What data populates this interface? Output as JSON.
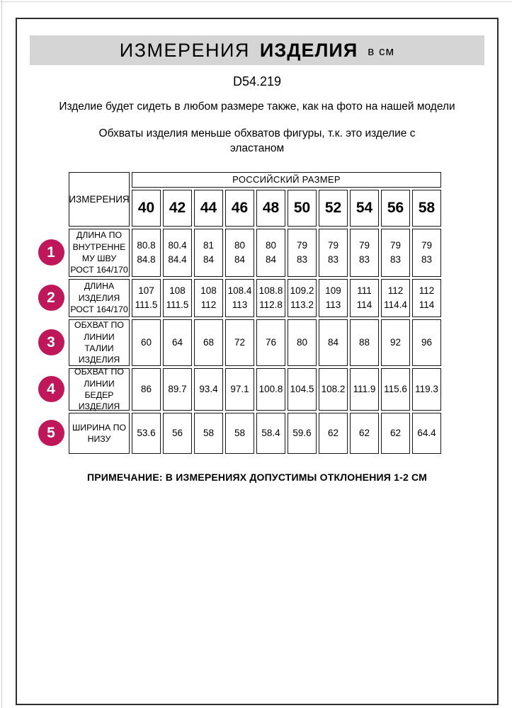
{
  "header": {
    "title_main": "ИЗМЕРЕНИЯ",
    "title_emphasis": "ИЗДЕЛИЯ",
    "title_unit": "в см",
    "product_code": "D54.219",
    "note_fit": "Изделие будет сидеть в любом размере также, как на фото на нашей модели",
    "note_elastane": "Обхваты изделия меньше обхватов фигуры, т.к. это изделие с эластаном"
  },
  "table": {
    "measurements_header": "ИЗМЕРЕНИЯ",
    "size_group_header": "РОССИЙСКИЙ РАЗМЕР",
    "sizes": [
      "40",
      "42",
      "44",
      "46",
      "48",
      "50",
      "52",
      "54",
      "56",
      "58"
    ],
    "rows": [
      {
        "num": "1",
        "label": "ДЛИНА ПО\nВНУТРЕННЕ\nМУ ШВУ\nРОСТ 164/170",
        "values": [
          "80.8\n84.8",
          "80.4\n84.4",
          "81\n84",
          "80\n84",
          "80\n84",
          "79\n83",
          "79\n83",
          "79\n83",
          "79\n83",
          "79\n83"
        ]
      },
      {
        "num": "2",
        "label": "ДЛИНА\nИЗДЕЛИЯ\nРОСТ 164/170",
        "values": [
          "107\n111.5",
          "108\n111.5",
          "108\n112",
          "108.4\n113",
          "108.8\n112.8",
          "109.2\n113.2",
          "109\n113",
          "111\n114",
          "112\n114.4",
          "112\n114"
        ]
      },
      {
        "num": "3",
        "label": "ОБХВАТ ПО\nЛИНИИ\nТАЛИИ\nИЗДЕЛИЯ",
        "values": [
          "60",
          "64",
          "68",
          "72",
          "76",
          "80",
          "84",
          "88",
          "92",
          "96"
        ]
      },
      {
        "num": "4",
        "label": "ОБХВАТ ПО\nЛИНИИ\nБЕДЕР\nИЗДЕЛИЯ",
        "values": [
          "86",
          "89.7",
          "93.4",
          "97.1",
          "100.8",
          "104.5",
          "108.2",
          "111.9",
          "115.6",
          "119.3"
        ]
      },
      {
        "num": "5",
        "label": "ШИРИНА ПО\nНИЗУ",
        "values": [
          "53.6",
          "56",
          "58",
          "58",
          "58.4",
          "59.6",
          "62",
          "62",
          "62",
          "64.4"
        ]
      }
    ]
  },
  "footnote": "ПРИМЕЧАНИЕ: В ИЗМЕРЕНИЯХ ДОПУСТИМЫ ОТКЛОНЕНИЯ 1-2 СМ",
  "colors": {
    "badge": "#c0175b",
    "title_band": "#d5d5d5"
  }
}
